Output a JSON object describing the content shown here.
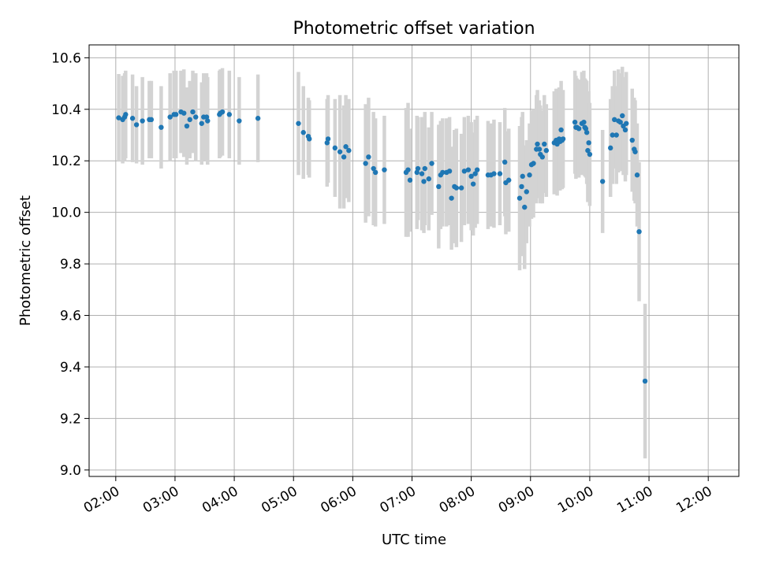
{
  "chart_data": {
    "type": "scatter",
    "title": "Photometric offset variation",
    "xlabel": "UTC time",
    "ylabel": "Photometric offset",
    "x_unit": "UTC time (HH:MM)",
    "xlim": [
      "01:33",
      "12:31"
    ],
    "ylim": [
      8.975,
      10.65
    ],
    "x_ticks": [
      "02:00",
      "03:00",
      "04:00",
      "05:00",
      "06:00",
      "07:00",
      "08:00",
      "09:00",
      "10:00",
      "11:00",
      "12:00"
    ],
    "y_ticks": [
      "9.0",
      "9.2",
      "9.4",
      "9.6",
      "9.8",
      "10.0",
      "10.2",
      "10.4",
      "10.6"
    ],
    "grid": true,
    "colors": {
      "points": "#1f77b4",
      "errorbars": "#d3d3d3",
      "grid": "#b0b0b0"
    },
    "series": [
      {
        "points": [
          [
            "02:03",
            10.367,
            0.17
          ],
          [
            "02:07",
            10.36,
            0.17
          ],
          [
            "02:09",
            10.37,
            0.17
          ],
          [
            "02:10",
            10.38,
            0.17
          ],
          [
            "02:17",
            10.365,
            0.17
          ],
          [
            "02:21",
            10.34,
            0.15
          ],
          [
            "02:27",
            10.355,
            0.17
          ],
          [
            "02:34",
            10.36,
            0.15
          ],
          [
            "02:36",
            10.36,
            0.15
          ],
          [
            "02:46",
            10.33,
            0.16
          ],
          [
            "02:55",
            10.37,
            0.17
          ],
          [
            "02:59",
            10.38,
            0.17
          ],
          [
            "03:01",
            10.38,
            0.17
          ],
          [
            "03:06",
            10.39,
            0.16
          ],
          [
            "03:09",
            10.385,
            0.17
          ],
          [
            "03:12",
            10.335,
            0.15
          ],
          [
            "03:15",
            10.36,
            0.15
          ],
          [
            "03:18",
            10.39,
            0.16
          ],
          [
            "03:21",
            10.37,
            0.17
          ],
          [
            "03:27",
            10.345,
            0.16
          ],
          [
            "03:29",
            10.37,
            0.17
          ],
          [
            "03:32",
            10.37,
            0.17
          ],
          [
            "03:33",
            10.355,
            0.17
          ],
          [
            "03:45",
            10.38,
            0.17
          ],
          [
            "03:46",
            10.385,
            0.17
          ],
          [
            "03:48",
            10.39,
            0.17
          ],
          [
            "03:55",
            10.38,
            0.17
          ],
          [
            "04:05",
            10.355,
            0.17
          ],
          [
            "04:24",
            10.365,
            0.17
          ],
          [
            "05:05",
            10.345,
            0.2
          ],
          [
            "05:10",
            10.31,
            0.18
          ],
          [
            "05:15",
            10.295,
            0.15
          ],
          [
            "05:16",
            10.285,
            0.15
          ],
          [
            "05:34",
            10.27,
            0.17
          ],
          [
            "05:35",
            10.285,
            0.17
          ],
          [
            "05:42",
            10.25,
            0.19
          ],
          [
            "05:47",
            10.235,
            0.22
          ],
          [
            "05:51",
            10.215,
            0.2
          ],
          [
            "05:53",
            10.255,
            0.2
          ],
          [
            "05:56",
            10.24,
            0.2
          ],
          [
            "06:13",
            10.19,
            0.23
          ],
          [
            "06:16",
            10.215,
            0.23
          ],
          [
            "06:21",
            10.17,
            0.22
          ],
          [
            "06:23",
            10.155,
            0.21
          ],
          [
            "06:32",
            10.165,
            0.21
          ],
          [
            "06:54",
            10.155,
            0.25
          ],
          [
            "06:56",
            10.165,
            0.26
          ],
          [
            "06:58",
            10.125,
            0.2
          ],
          [
            "07:05",
            10.155,
            0.22
          ],
          [
            "07:06",
            10.17,
            0.2
          ],
          [
            "07:10",
            10.15,
            0.22
          ],
          [
            "07:12",
            10.12,
            0.2
          ],
          [
            "07:13",
            10.17,
            0.22
          ],
          [
            "07:17",
            10.13,
            0.2
          ],
          [
            "07:20",
            10.19,
            0.2
          ],
          [
            "07:27",
            10.1,
            0.24
          ],
          [
            "07:29",
            10.145,
            0.21
          ],
          [
            "07:31",
            10.155,
            0.21
          ],
          [
            "07:35",
            10.155,
            0.21
          ],
          [
            "07:38",
            10.16,
            0.21
          ],
          [
            "07:40",
            10.055,
            0.2
          ],
          [
            "07:43",
            10.1,
            0.22
          ],
          [
            "07:45",
            10.095,
            0.23
          ],
          [
            "07:50",
            10.095,
            0.21
          ],
          [
            "07:53",
            10.16,
            0.21
          ],
          [
            "07:57",
            10.165,
            0.21
          ],
          [
            "08:00",
            10.14,
            0.21
          ],
          [
            "08:02",
            10.11,
            0.2
          ],
          [
            "08:04",
            10.15,
            0.21
          ],
          [
            "08:06",
            10.165,
            0.21
          ],
          [
            "08:17",
            10.145,
            0.21
          ],
          [
            "08:20",
            10.145,
            0.2
          ],
          [
            "08:23",
            10.15,
            0.21
          ],
          [
            "08:29",
            10.15,
            0.2
          ],
          [
            "08:34",
            10.195,
            0.21
          ],
          [
            "08:35",
            10.115,
            0.2
          ],
          [
            "08:38",
            10.125,
            0.2
          ],
          [
            "08:49",
            10.055,
            0.28
          ],
          [
            "08:51",
            10.1,
            0.27
          ],
          [
            "08:52",
            10.14,
            0.25
          ],
          [
            "08:54",
            10.02,
            0.24
          ],
          [
            "08:56",
            10.08,
            0.2
          ],
          [
            "08:59",
            10.145,
            0.2
          ],
          [
            "09:01",
            10.185,
            0.21
          ],
          [
            "09:03",
            10.19,
            0.21
          ],
          [
            "09:06",
            10.245,
            0.21
          ],
          [
            "09:07",
            10.265,
            0.21
          ],
          [
            "09:09",
            10.245,
            0.19
          ],
          [
            "09:10",
            10.225,
            0.19
          ],
          [
            "09:12",
            10.215,
            0.18
          ],
          [
            "09:14",
            10.265,
            0.19
          ],
          [
            "09:16",
            10.24,
            0.18
          ],
          [
            "09:24",
            10.27,
            0.2
          ],
          [
            "09:26",
            10.28,
            0.2
          ],
          [
            "09:27",
            10.265,
            0.2
          ],
          [
            "09:29",
            10.285,
            0.2
          ],
          [
            "09:30",
            10.275,
            0.19
          ],
          [
            "09:31",
            10.32,
            0.19
          ],
          [
            "09:32",
            10.28,
            0.19
          ],
          [
            "09:33",
            10.285,
            0.19
          ],
          [
            "09:45",
            10.35,
            0.2
          ],
          [
            "09:46",
            10.33,
            0.2
          ],
          [
            "09:47",
            10.33,
            0.19
          ],
          [
            "09:49",
            10.325,
            0.19
          ],
          [
            "09:52",
            10.345,
            0.2
          ],
          [
            "09:54",
            10.35,
            0.2
          ],
          [
            "09:55",
            10.33,
            0.19
          ],
          [
            "09:56",
            10.325,
            0.19
          ],
          [
            "09:57",
            10.31,
            0.2
          ],
          [
            "09:58",
            10.24,
            0.2
          ],
          [
            "09:59",
            10.27,
            0.2
          ],
          [
            "10:00",
            10.225,
            0.2
          ],
          [
            "10:13",
            10.12,
            0.2
          ],
          [
            "10:21",
            10.25,
            0.19
          ],
          [
            "10:23",
            10.3,
            0.19
          ],
          [
            "10:25",
            10.36,
            0.19
          ],
          [
            "10:27",
            10.3,
            0.19
          ],
          [
            "10:29",
            10.355,
            0.2
          ],
          [
            "10:31",
            10.35,
            0.19
          ],
          [
            "10:33",
            10.375,
            0.19
          ],
          [
            "10:34",
            10.335,
            0.19
          ],
          [
            "10:36",
            10.32,
            0.2
          ],
          [
            "10:37",
            10.345,
            0.2
          ],
          [
            "10:43",
            10.28,
            0.2
          ],
          [
            "10:45",
            10.245,
            0.2
          ],
          [
            "10:46",
            10.235,
            0.2
          ],
          [
            "10:48",
            10.145,
            0.2
          ],
          [
            "10:50",
            9.925,
            0.27
          ],
          [
            "10:56",
            9.345,
            0.3
          ]
        ]
      }
    ]
  }
}
